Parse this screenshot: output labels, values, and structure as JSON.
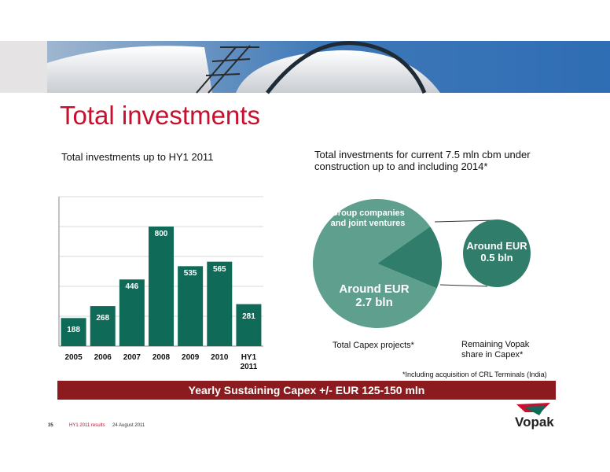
{
  "slide": {
    "title": "Total investments",
    "banner": "Yearly Sustaining Capex +/- EUR 125-150 mln",
    "footer": {
      "page": "35",
      "report": "HY1 2011 results",
      "date": "24 August 2011"
    },
    "logo": "Vopak"
  },
  "chart_data": [
    {
      "type": "bar",
      "title": "Total investments up to HY1 2011",
      "categories": [
        "2005",
        "2006",
        "2007",
        "2008",
        "2009",
        "2010",
        "HY1 2011"
      ],
      "values": [
        188,
        268,
        446,
        800,
        535,
        565,
        281
      ],
      "color": "#0f6b58",
      "ylim": [
        0,
        1000
      ],
      "yticks": [
        0,
        200,
        400,
        600,
        800,
        1000
      ],
      "grid": true
    },
    {
      "type": "pie",
      "title": "Total investments for current 7.5 mln cbm under construction up to and including 2014*",
      "categories": [
        null,
        "Group companies and joint ventures"
      ],
      "values": [
        84,
        16
      ],
      "colors": [
        "#5e9f8d",
        "#2f7d6a"
      ],
      "annotations": [
        "Around EUR 2.7 bln",
        "Around EUR 0.5 bln"
      ],
      "captions": [
        "Total Capex projects*",
        "Remaining Vopak share in Capex*"
      ],
      "footnote": "*Including acquisition of CRL Terminals (India)"
    }
  ]
}
